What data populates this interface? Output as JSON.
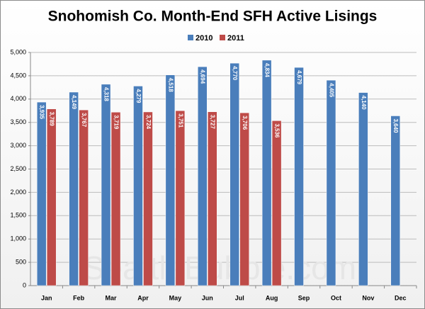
{
  "chart_data": {
    "type": "bar",
    "title": "Snohomish Co. Month-End SFH Active Lisings",
    "watermark": "SeattleBubble.com",
    "categories": [
      "Jan",
      "Feb",
      "Mar",
      "Apr",
      "May",
      "Jun",
      "Jul",
      "Aug",
      "Sep",
      "Oct",
      "Nov",
      "Dec"
    ],
    "series": [
      {
        "name": "2010",
        "color": "#4a7ebb",
        "values": [
          3935,
          4149,
          4318,
          4279,
          4518,
          4694,
          4770,
          4834,
          4679,
          4405,
          4140,
          3640
        ],
        "value_labels": [
          "3,935",
          "4,149",
          "4,318",
          "4,279",
          "4,518",
          "4,694",
          "4,770",
          "4,834",
          "4,679",
          "4,405",
          "4,140",
          "3,640"
        ]
      },
      {
        "name": "2011",
        "color": "#be4b48",
        "values": [
          3789,
          3767,
          3719,
          3724,
          3751,
          3727,
          3706,
          3536,
          null,
          null,
          null,
          null
        ],
        "value_labels": [
          "3,789",
          "3,767",
          "3,719",
          "3,724",
          "3,751",
          "3,727",
          "3,706",
          "3,536",
          null,
          null,
          null,
          null
        ]
      }
    ],
    "ylim": [
      0,
      5000
    ],
    "yticks": [
      0,
      500,
      {
        "value": 1000,
        "label": "1,000"
      },
      {
        "value": 1500,
        "label": "1,500"
      },
      {
        "value": 2000,
        "label": "2,000"
      },
      {
        "value": 2500,
        "label": "2,500"
      },
      {
        "value": 3000,
        "label": "3,000"
      },
      {
        "value": 3500,
        "label": "3,500"
      },
      {
        "value": 4000,
        "label": "4,000"
      },
      {
        "value": 4500,
        "label": "4,500"
      },
      {
        "value": 5000,
        "label": "5,000"
      }
    ],
    "grid": true,
    "legend": "top"
  }
}
